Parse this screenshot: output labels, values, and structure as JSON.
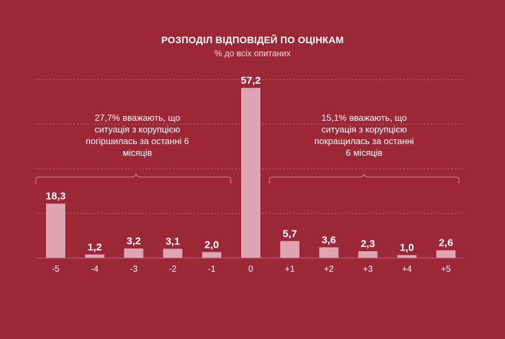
{
  "chart_data": {
    "type": "bar",
    "title": "РОЗПОДІЛ ВІДПОВІДЕЙ ПО ОЦІНКАМ",
    "subtitle": "% до всіх опитаних",
    "categories": [
      "-5",
      "-4",
      "-3",
      "-2",
      "-1",
      "0",
      "+1",
      "+2",
      "+3",
      "+4",
      "+5"
    ],
    "values": [
      18.3,
      1.2,
      3.2,
      3.1,
      2.0,
      57.2,
      5.7,
      3.6,
      2.3,
      1.0,
      2.6
    ],
    "value_labels": [
      "18,3",
      "1,2",
      "3,2",
      "3,1",
      "2,0",
      "57,2",
      "5,7",
      "3,6",
      "2,3",
      "1,0",
      "2,6"
    ],
    "ylim": [
      0,
      60
    ],
    "grid": true,
    "annotations": [
      {
        "text_lines": [
          "27,7% вважають, що",
          "ситуація з корупцією",
          "погіршилась за останні 6",
          "місяців"
        ]
      },
      {
        "text_lines": [
          "15,1% вважають, що",
          "ситуація з корупцією",
          "покращилась за останні",
          "6 місяців"
        ]
      }
    ],
    "colors": {
      "background": "#9b2737",
      "bar": "#dfa5b2",
      "text": "#ffffff",
      "grid": "#c06a78"
    }
  }
}
